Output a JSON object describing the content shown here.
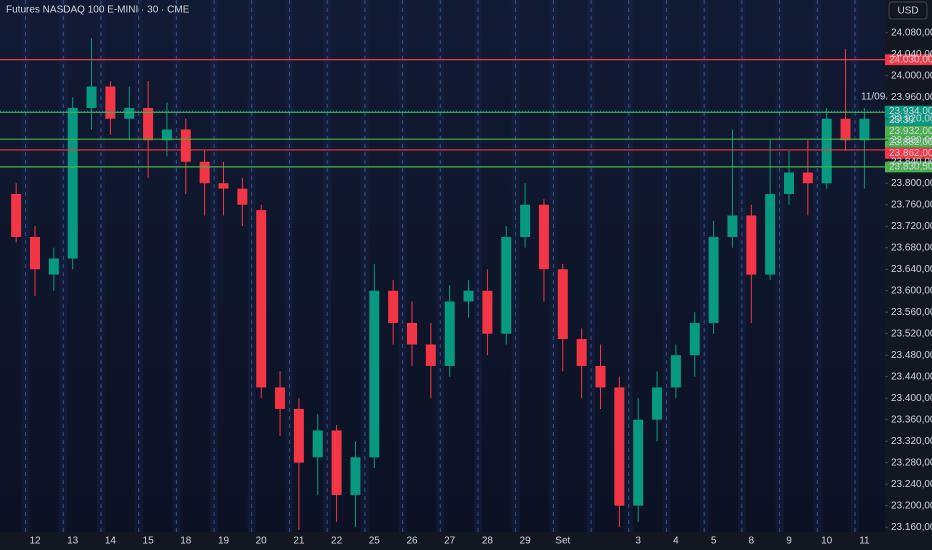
{
  "chart_data": {
    "type": "candlestick",
    "title": "Futures NASDAQ 100 E-MINI · 30 · CME",
    "currency": "USD",
    "annotation": "11/09.",
    "categories": [
      null,
      "12",
      null,
      "13",
      null,
      "14",
      null,
      "15",
      null,
      "18",
      null,
      "19",
      null,
      "20",
      null,
      "21",
      null,
      "22",
      null,
      "25",
      null,
      "26",
      null,
      "27",
      null,
      "28",
      null,
      "29",
      null,
      "Set",
      null,
      null,
      null,
      "3",
      null,
      "4",
      null,
      "5",
      null,
      "8",
      null,
      "9",
      null,
      "10",
      null,
      "11"
    ],
    "open": [
      23780,
      23700,
      23630,
      23660,
      23940,
      23980,
      23920,
      23940,
      23880,
      23900,
      23840,
      23800,
      23790,
      23750,
      23420,
      23380,
      23290,
      23340,
      23220,
      23290,
      23600,
      23540,
      23500,
      23460,
      23580,
      23600,
      23520,
      23700,
      23760,
      23640,
      23510,
      23460,
      23420,
      23200,
      23360,
      23420,
      23480,
      23540,
      23700,
      23740,
      23630,
      23780,
      23820,
      23800,
      23920,
      23880
    ],
    "high": [
      23800,
      23720,
      23680,
      23960,
      24070,
      23990,
      23980,
      23990,
      23950,
      23920,
      23860,
      23840,
      23810,
      23760,
      23450,
      23400,
      23370,
      23350,
      23320,
      23650,
      23620,
      23580,
      23540,
      23610,
      23620,
      23640,
      23720,
      23800,
      23770,
      23650,
      23530,
      23500,
      23440,
      23400,
      23450,
      23500,
      23560,
      23730,
      23900,
      23760,
      23880,
      23860,
      23880,
      23940,
      24050,
      23940
    ],
    "low": [
      23690,
      23590,
      23600,
      23640,
      23900,
      23890,
      23880,
      23810,
      23850,
      23780,
      23740,
      23740,
      23720,
      23400,
      23330,
      23155,
      23220,
      23170,
      23160,
      23270,
      23500,
      23460,
      23400,
      23440,
      23550,
      23480,
      23500,
      23680,
      23580,
      23450,
      23400,
      23380,
      23160,
      23170,
      23320,
      23400,
      23440,
      23520,
      23680,
      23540,
      23620,
      23760,
      23740,
      23790,
      23860,
      23790
    ],
    "close": [
      23700,
      23640,
      23660,
      23940,
      23980,
      23920,
      23940,
      23880,
      23900,
      23840,
      23800,
      23790,
      23760,
      23420,
      23380,
      23280,
      23340,
      23220,
      23290,
      23600,
      23540,
      23500,
      23460,
      23580,
      23600,
      23520,
      23700,
      23760,
      23640,
      23510,
      23460,
      23420,
      23200,
      23360,
      23420,
      23480,
      23540,
      23700,
      23740,
      23630,
      23780,
      23820,
      23800,
      23920,
      23880,
      23920
    ],
    "up_color": "#089981",
    "down_color": "#f23645",
    "ylim": [
      23151,
      24141
    ],
    "yticks": [
      {
        "value": 24080,
        "label": "24.080,00"
      },
      {
        "value": 24040,
        "label": "24.040,00"
      },
      {
        "value": 24000,
        "label": "24.000,00"
      },
      {
        "value": 23960,
        "label": "23.960,00"
      },
      {
        "value": 23920,
        "label": "23.920,00"
      },
      {
        "value": 23880,
        "label": "23.880,00"
      },
      {
        "value": 23840,
        "label": "23.840,00"
      },
      {
        "value": 23800,
        "label": "23.800,00"
      },
      {
        "value": 23760,
        "label": "23.760,00"
      },
      {
        "value": 23720,
        "label": "23.720,00"
      },
      {
        "value": 23680,
        "label": "23.680,00"
      },
      {
        "value": 23640,
        "label": "23.640,00"
      },
      {
        "value": 23600,
        "label": "23.600,00"
      },
      {
        "value": 23560,
        "label": "23.560,00"
      },
      {
        "value": 23520,
        "label": "23.520,00"
      },
      {
        "value": 23480,
        "label": "23.480,00"
      },
      {
        "value": 23440,
        "label": "23.440,00"
      },
      {
        "value": 23400,
        "label": "23.400,00"
      },
      {
        "value": 23360,
        "label": "23.360,00"
      },
      {
        "value": 23320,
        "label": "23.320,00"
      },
      {
        "value": 23280,
        "label": "23.280,00"
      },
      {
        "value": 23240,
        "label": "23.240,00"
      },
      {
        "value": 23200,
        "label": "23.200,00"
      },
      {
        "value": 23160,
        "label": "23.160,00"
      }
    ],
    "levels": [
      {
        "value": 24030,
        "label": "24.030,00",
        "color": "#f23645"
      },
      {
        "value": 23932,
        "label": "23.932,00",
        "color": "#4caf50"
      },
      {
        "value": 23882,
        "label": "23.882,00",
        "color": "#4caf50"
      },
      {
        "value": 23862,
        "label": "23.862,00",
        "color": "#f23645"
      },
      {
        "value": 23830.5,
        "label": "23.830,50",
        "color": "#4caf50"
      }
    ],
    "last_price": {
      "value": 23934,
      "label": "23.934,00",
      "countdown": "25:39",
      "color": "#089981"
    },
    "grid": false
  }
}
